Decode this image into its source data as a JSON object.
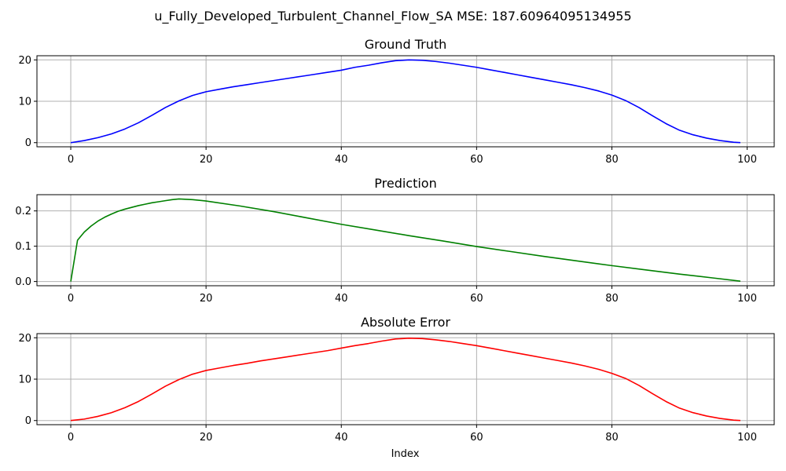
{
  "title": "u_Fully_Developed_Turbulent_Channel_Flow_SA MSE: 187.60964095134955",
  "xlabel": "Index",
  "chart_data": [
    {
      "type": "line",
      "title": "Ground Truth",
      "color": "#0000ff",
      "xlim": [
        -5,
        104
      ],
      "ylim": [
        -1,
        21
      ],
      "xticks": [
        0,
        20,
        40,
        60,
        80,
        100
      ],
      "yticks": [
        0,
        10,
        20
      ],
      "ytick_labels": [
        "0",
        "10",
        "20"
      ],
      "grid": true,
      "series": [
        {
          "x": [
            0,
            2,
            4,
            6,
            8,
            10,
            12,
            14,
            16,
            18,
            20,
            22,
            24,
            26,
            28,
            30,
            32,
            34,
            36,
            38,
            40,
            42,
            44,
            46,
            48,
            50,
            52,
            54,
            56,
            58,
            60,
            62,
            64,
            66,
            68,
            70,
            72,
            74,
            76,
            78,
            80,
            82,
            84,
            86,
            88,
            90,
            92,
            94,
            96,
            98,
            99
          ],
          "values": [
            0,
            0.5,
            1.2,
            2.1,
            3.3,
            4.8,
            6.6,
            8.5,
            10.1,
            11.4,
            12.3,
            12.9,
            13.5,
            14.0,
            14.5,
            15.0,
            15.5,
            16.0,
            16.5,
            17.0,
            17.5,
            18.2,
            18.7,
            19.3,
            19.8,
            20.0,
            19.9,
            19.6,
            19.2,
            18.7,
            18.2,
            17.6,
            17.0,
            16.4,
            15.8,
            15.2,
            14.6,
            14.0,
            13.3,
            12.5,
            11.5,
            10.2,
            8.5,
            6.5,
            4.6,
            3.0,
            1.9,
            1.1,
            0.5,
            0.1,
            0
          ]
        }
      ]
    },
    {
      "type": "line",
      "title": "Prediction",
      "color": "#008000",
      "xlim": [
        -5,
        104
      ],
      "ylim": [
        -0.012,
        0.246
      ],
      "xticks": [
        0,
        20,
        40,
        60,
        80,
        100
      ],
      "yticks": [
        0,
        0.1,
        0.2
      ],
      "ytick_labels": [
        "0.0",
        "0.1",
        "0.2"
      ],
      "grid": true,
      "series": [
        {
          "x": [
            0,
            1,
            2,
            3,
            4,
            5,
            6,
            7,
            8,
            9,
            10,
            11,
            12,
            13,
            14,
            15,
            16,
            18,
            20,
            25,
            30,
            35,
            40,
            45,
            50,
            55,
            60,
            65,
            70,
            75,
            80,
            85,
            90,
            95,
            99
          ],
          "values": [
            0,
            0.117,
            0.14,
            0.157,
            0.171,
            0.182,
            0.191,
            0.199,
            0.205,
            0.21,
            0.215,
            0.219,
            0.223,
            0.226,
            0.229,
            0.232,
            0.234,
            0.232,
            0.228,
            0.214,
            0.198,
            0.18,
            0.162,
            0.146,
            0.13,
            0.115,
            0.099,
            0.085,
            0.071,
            0.058,
            0.045,
            0.033,
            0.021,
            0.01,
            0.001
          ]
        }
      ]
    },
    {
      "type": "line",
      "title": "Absolute Error",
      "color": "#ff0000",
      "xlim": [
        -5,
        104
      ],
      "ylim": [
        -1,
        21
      ],
      "xticks": [
        0,
        20,
        40,
        60,
        80,
        100
      ],
      "yticks": [
        0,
        10,
        20
      ],
      "ytick_labels": [
        "0",
        "10",
        "20"
      ],
      "grid": true,
      "series": [
        {
          "x": [
            0,
            2,
            4,
            6,
            8,
            10,
            12,
            14,
            16,
            18,
            20,
            22,
            24,
            26,
            28,
            30,
            32,
            34,
            36,
            38,
            40,
            42,
            44,
            46,
            48,
            50,
            52,
            54,
            56,
            58,
            60,
            62,
            64,
            66,
            68,
            70,
            72,
            74,
            76,
            78,
            80,
            82,
            84,
            86,
            88,
            90,
            92,
            94,
            96,
            98,
            99
          ],
          "values": [
            0,
            0.35,
            1.0,
            1.9,
            3.1,
            4.6,
            6.4,
            8.3,
            9.9,
            11.2,
            12.1,
            12.7,
            13.3,
            13.8,
            14.4,
            14.9,
            15.4,
            15.9,
            16.4,
            16.9,
            17.5,
            18.1,
            18.6,
            19.2,
            19.7,
            19.9,
            19.8,
            19.5,
            19.1,
            18.6,
            18.1,
            17.5,
            16.9,
            16.3,
            15.7,
            15.1,
            14.5,
            13.9,
            13.2,
            12.4,
            11.4,
            10.2,
            8.5,
            6.5,
            4.6,
            3.0,
            1.9,
            1.1,
            0.5,
            0.1,
            0
          ]
        }
      ]
    }
  ]
}
